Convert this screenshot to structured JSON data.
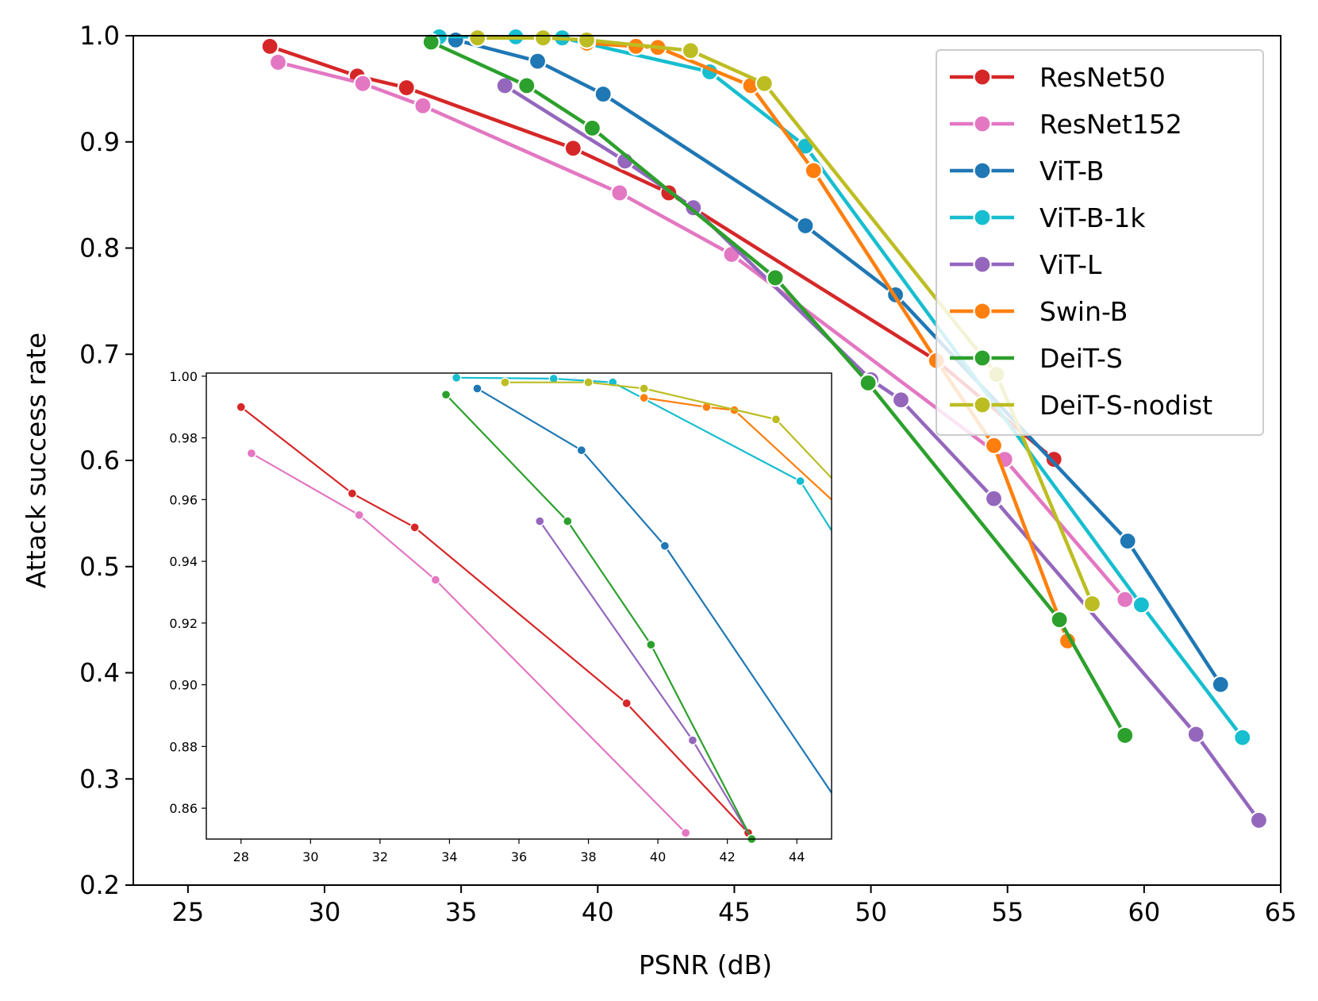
{
  "chart_data": [
    {
      "type": "line",
      "title": "",
      "xlabel": "PSNR (dB)",
      "ylabel": "Attack success rate",
      "xlim": [
        23,
        65
      ],
      "ylim": [
        0.2,
        1.0
      ],
      "xticks": [
        25,
        30,
        35,
        40,
        45,
        50,
        55,
        60,
        65
      ],
      "yticks": [
        0.2,
        0.3,
        0.4,
        0.5,
        0.6,
        0.7,
        0.8,
        0.9,
        1.0
      ],
      "legend_position": "top-right",
      "series": [
        {
          "name": "ResNet50",
          "color": "#d62728",
          "x": [
            28.0,
            31.2,
            33.0,
            39.1,
            42.6,
            52.4,
            56.7
          ],
          "y": [
            0.99,
            0.962,
            0.951,
            0.894,
            0.852,
            0.694,
            0.601
          ]
        },
        {
          "name": "ResNet152",
          "color": "#e377c2",
          "x": [
            28.3,
            31.4,
            33.6,
            40.8,
            44.9,
            54.9,
            59.3
          ],
          "y": [
            0.975,
            0.955,
            0.934,
            0.852,
            0.794,
            0.601,
            0.469
          ]
        },
        {
          "name": "ViT-B",
          "color": "#1f77b4",
          "x": [
            34.8,
            37.8,
            40.2,
            47.6,
            50.9,
            59.4,
            62.8
          ],
          "y": [
            0.996,
            0.976,
            0.945,
            0.821,
            0.756,
            0.524,
            0.389
          ]
        },
        {
          "name": "ViT-B-1k",
          "color": "#17becf",
          "x": [
            34.2,
            37.0,
            38.7,
            44.1,
            47.6,
            59.9,
            63.6
          ],
          "y": [
            0.999,
            0.999,
            0.998,
            0.966,
            0.896,
            0.464,
            0.339
          ]
        },
        {
          "name": "ViT-L",
          "color": "#9467bd",
          "x": [
            36.6,
            41.0,
            43.5,
            50.0,
            51.1,
            54.5,
            61.9,
            64.2
          ],
          "y": [
            0.953,
            0.882,
            0.838,
            0.676,
            0.657,
            0.564,
            0.342,
            0.261
          ]
        },
        {
          "name": "Swin-B",
          "color": "#ff7f0e",
          "x": [
            39.6,
            41.4,
            42.2,
            45.6,
            47.9,
            52.4,
            54.5,
            57.2
          ],
          "y": [
            0.993,
            0.99,
            0.989,
            0.953,
            0.873,
            0.694,
            0.614,
            0.43
          ]
        },
        {
          "name": "DeiT-S",
          "color": "#2ca02c",
          "x": [
            33.9,
            37.4,
            39.8,
            46.5,
            49.9,
            56.9,
            59.3
          ],
          "y": [
            0.994,
            0.953,
            0.913,
            0.772,
            0.673,
            0.45,
            0.341
          ]
        },
        {
          "name": "DeiT-S-nodist",
          "color": "#bcbd22",
          "x": [
            35.6,
            38.0,
            39.6,
            43.4,
            46.1,
            54.6,
            58.1
          ],
          "y": [
            0.998,
            0.998,
            0.996,
            0.986,
            0.955,
            0.681,
            0.465
          ]
        }
      ]
    },
    {
      "type": "line",
      "title": "",
      "xlabel": "",
      "ylabel": "",
      "xlim": [
        27,
        45
      ],
      "ylim": [
        0.85,
        1.001
      ],
      "xticks": [
        28,
        30,
        32,
        34,
        36,
        38,
        40,
        42,
        44
      ],
      "yticks": [
        0.86,
        0.88,
        0.9,
        0.92,
        0.94,
        0.96,
        0.98,
        1.0
      ],
      "yticks_text": [
        "0.86",
        "0.88",
        "0.90",
        "0.92",
        "0.94",
        "0.96",
        "0.98",
        "1.00"
      ],
      "inset": true,
      "series": [
        {
          "name": "ResNet50",
          "color": "#d62728",
          "x": [
            28.0,
            31.2,
            33.0,
            39.1,
            42.6
          ],
          "y": [
            0.99,
            0.962,
            0.951,
            0.894,
            0.852
          ]
        },
        {
          "name": "ResNet152",
          "color": "#e377c2",
          "x": [
            28.3,
            31.4,
            33.6,
            40.8
          ],
          "y": [
            0.975,
            0.955,
            0.934,
            0.852
          ]
        },
        {
          "name": "ViT-B",
          "color": "#1f77b4",
          "x": [
            34.8,
            37.8,
            40.2,
            45.0
          ],
          "y": [
            0.996,
            0.976,
            0.945,
            0.865
          ]
        },
        {
          "name": "ViT-B-1k",
          "color": "#17becf",
          "x": [
            34.2,
            37.0,
            38.7,
            44.1,
            45.0
          ],
          "y": [
            0.9995,
            0.9992,
            0.998,
            0.966,
            0.95
          ]
        },
        {
          "name": "ViT-L",
          "color": "#9467bd",
          "x": [
            36.6,
            41.0,
            42.7
          ],
          "y": [
            0.953,
            0.882,
            0.85
          ]
        },
        {
          "name": "Swin-B",
          "color": "#ff7f0e",
          "x": [
            39.6,
            41.4,
            42.2,
            45.0
          ],
          "y": [
            0.993,
            0.99,
            0.989,
            0.96
          ]
        },
        {
          "name": "DeiT-S",
          "color": "#2ca02c",
          "x": [
            33.9,
            37.4,
            39.8,
            42.7
          ],
          "y": [
            0.994,
            0.953,
            0.913,
            0.85
          ]
        },
        {
          "name": "DeiT-S-nodist",
          "color": "#bcbd22",
          "x": [
            35.6,
            38.0,
            39.6,
            43.4,
            45.0
          ],
          "y": [
            0.998,
            0.998,
            0.996,
            0.986,
            0.967
          ]
        }
      ],
      "markers_hidden_at_edge": true
    }
  ]
}
